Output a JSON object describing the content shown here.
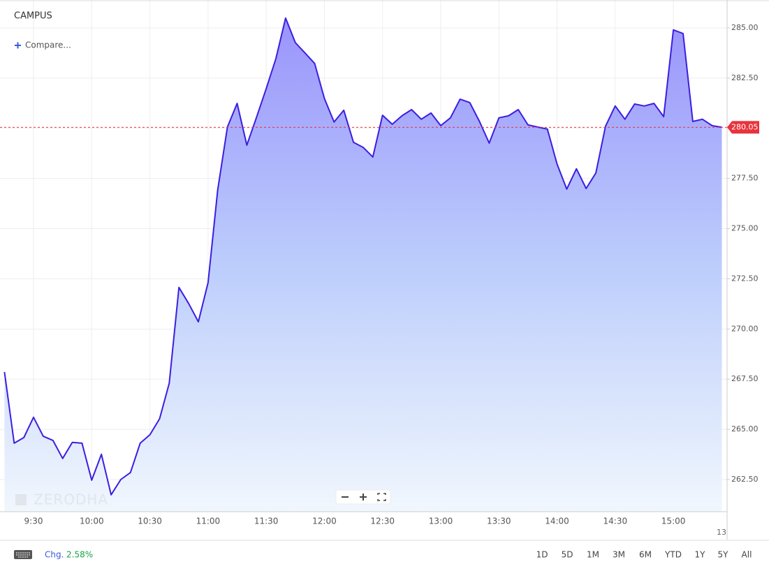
{
  "chart_data": {
    "type": "area",
    "title": "CAMPUS",
    "x": [
      555,
      560,
      565,
      570,
      575,
      580,
      585,
      590,
      595,
      600,
      605,
      610,
      615,
      620,
      625,
      630,
      635,
      640,
      645,
      650,
      655,
      660,
      665,
      670,
      675,
      680,
      685,
      690,
      695,
      700,
      705,
      710,
      715,
      720,
      725,
      730,
      735,
      740,
      745,
      750,
      755,
      760,
      765,
      770,
      775,
      780,
      785,
      790,
      795,
      800,
      805,
      810,
      815,
      820,
      825,
      830,
      835,
      840,
      845,
      850,
      855,
      860,
      865,
      870,
      875,
      880,
      885,
      890,
      895,
      900,
      905,
      910,
      915,
      920,
      925
    ],
    "series": [
      {
        "color": "#3b1ee0",
        "values": [
          267.86,
          264.31,
          264.59,
          265.6,
          264.66,
          264.45,
          263.55,
          264.35,
          264.31,
          262.47,
          263.76,
          261.74,
          262.5,
          262.85,
          264.31,
          264.73,
          265.53,
          267.3,
          272.07,
          271.27,
          270.36,
          272.31,
          276.93,
          280.06,
          281.24,
          279.16,
          280.55,
          281.97,
          283.47,
          285.49,
          284.27,
          283.75,
          283.23,
          281.49,
          280.31,
          280.9,
          279.3,
          279.05,
          278.57,
          280.65,
          280.2,
          280.62,
          280.93,
          280.45,
          280.76,
          280.13,
          280.52,
          281.45,
          281.28,
          280.34,
          279.26,
          280.52,
          280.62,
          280.93,
          280.17,
          280.06,
          279.96,
          278.22,
          276.97,
          277.98,
          277.0,
          277.77,
          280.1,
          281.11,
          280.45,
          281.21,
          281.11,
          281.24,
          280.58,
          284.9,
          284.72,
          280.34,
          280.45,
          280.13,
          280.05
        ]
      }
    ],
    "last_price": 280.05,
    "last_price_color": "#e8333c",
    "xlim": [
      552.7,
      927.7
    ],
    "xticks": [
      {
        "value": 570,
        "label": "9:30"
      },
      {
        "value": 600,
        "label": "10:00"
      },
      {
        "value": 630,
        "label": "10:30"
      },
      {
        "value": 660,
        "label": "11:00"
      },
      {
        "value": 690,
        "label": "11:30"
      },
      {
        "value": 720,
        "label": "12:00"
      },
      {
        "value": 750,
        "label": "12:30"
      },
      {
        "value": 780,
        "label": "13:00"
      },
      {
        "value": 810,
        "label": "13:30"
      },
      {
        "value": 840,
        "label": "14:00"
      },
      {
        "value": 870,
        "label": "14:30"
      },
      {
        "value": 900,
        "label": "15:00"
      }
    ],
    "ylim": [
      260.9,
      286.39
    ],
    "yticks": [
      {
        "value": 262.5,
        "label": "262.50"
      },
      {
        "value": 265,
        "label": "265.00"
      },
      {
        "value": 267.5,
        "label": "267.50"
      },
      {
        "value": 270,
        "label": "270.00"
      },
      {
        "value": 272.5,
        "label": "272.50"
      },
      {
        "value": 275,
        "label": "275.00"
      },
      {
        "value": 277.5,
        "label": "277.50"
      },
      {
        "value": 280,
        "label": "280.00"
      },
      {
        "value": 282.5,
        "label": "282.50"
      },
      {
        "value": 285,
        "label": "285.00"
      }
    ],
    "grid": true,
    "date_label": "13"
  },
  "ui": {
    "compare": "Compare...",
    "watermark": "ZERODHA",
    "change_label": "Chg.",
    "change": "2.58%",
    "ranges": [
      "1D",
      "5D",
      "1M",
      "3M",
      "6M",
      "YTD",
      "1Y",
      "5Y",
      "All"
    ]
  }
}
